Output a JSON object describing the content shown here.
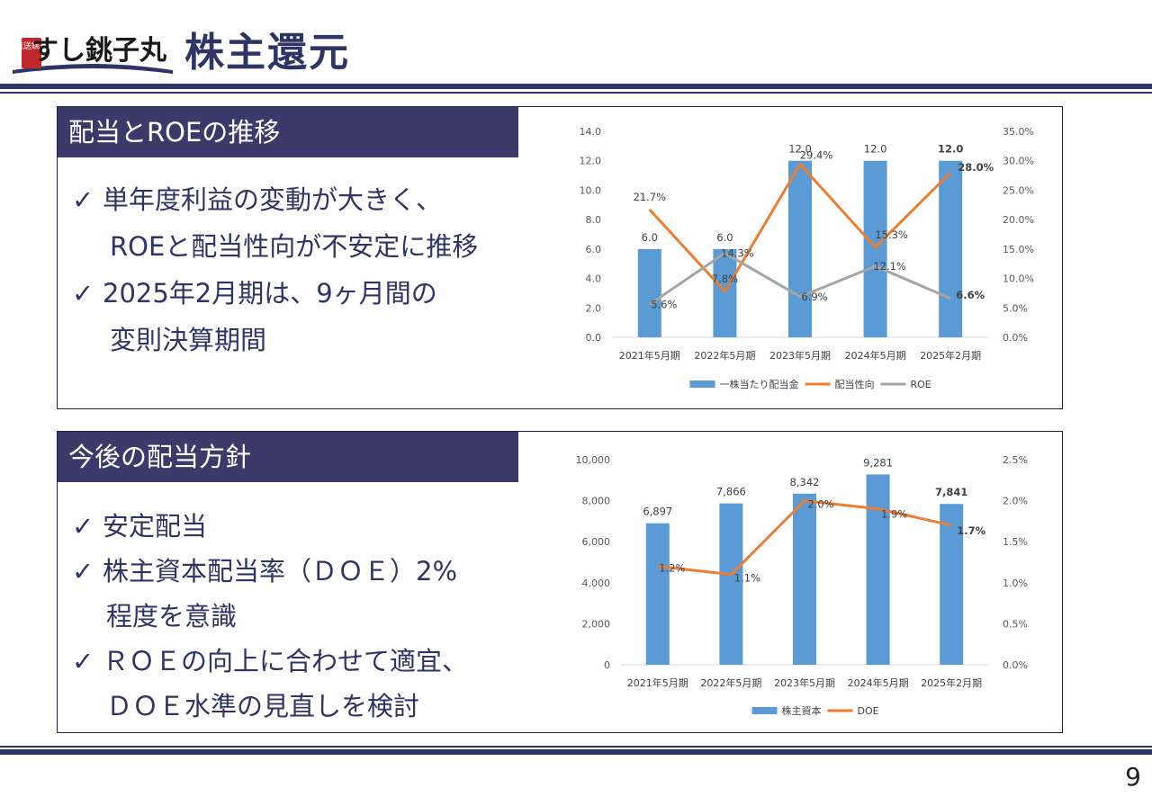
{
  "header": {
    "logo_text": "すし銚子丸",
    "logo_badge": "直送銚子",
    "title": "株主還元"
  },
  "section1": {
    "heading": "配当とROEの推移",
    "bullets": [
      {
        "check": "✓",
        "lines": [
          "単年度利益の変動が大きく、",
          "ROEと配当性向が不安定に推移"
        ]
      },
      {
        "check": "✓",
        "lines": [
          "2025年2月期は、9ヶ月間の",
          "変則決算期間"
        ]
      }
    ]
  },
  "section2": {
    "heading": "今後の配当方針",
    "bullets": [
      {
        "check": "✓",
        "lines": [
          "安定配当"
        ]
      },
      {
        "check": "✓",
        "lines": [
          "株主資本配当率（ＤＯＥ）2%",
          "程度を意識"
        ]
      },
      {
        "check": "✓",
        "lines": [
          "ＲＯＥの向上に合わせて適宜、",
          "ＤＯＥ水準の見直しを検討"
        ]
      }
    ]
  },
  "chart_data": [
    {
      "type": "bar",
      "categories": [
        "2021年5月期",
        "2022年5月期",
        "2023年5月期",
        "2024年5月期",
        "2025年2月期"
      ],
      "bar_series": {
        "name": "一株当たり配当金",
        "values": [
          6.0,
          6.0,
          12.0,
          12.0,
          12.0
        ],
        "labels": [
          "6.0",
          "6.0",
          "12.0",
          "12.0",
          "12.0"
        ],
        "color": "#5b9bd5"
      },
      "line_series": [
        {
          "name": "配当性向",
          "values": [
            21.7,
            7.8,
            29.4,
            15.3,
            28.0
          ],
          "labels": [
            "21.7%",
            "7.8%",
            "29.4%",
            "15.3%",
            "28.0%"
          ],
          "color": "#ed7d31"
        },
        {
          "name": "ROE",
          "values": [
            5.6,
            14.3,
            6.9,
            12.1,
            6.6
          ],
          "labels": [
            "5.6%",
            "14.3%",
            "6.9%",
            "12.1%",
            "6.6%"
          ],
          "color": "#a5a5a5"
        }
      ],
      "ylim": [
        0,
        14
      ],
      "y_ticks": [
        "0.0",
        "2.0",
        "4.0",
        "6.0",
        "8.0",
        "10.0",
        "12.0",
        "14.0"
      ],
      "y2lim": [
        0,
        35
      ],
      "y2_ticks": [
        "0.0%",
        "5.0%",
        "10.0%",
        "15.0%",
        "20.0%",
        "25.0%",
        "30.0%",
        "35.0%"
      ],
      "bold_last_labels": true,
      "legend": "bottom",
      "grid": false
    },
    {
      "type": "bar",
      "categories": [
        "2021年5月期",
        "2022年5月期",
        "2023年5月期",
        "2024年5月期",
        "2025年2月期"
      ],
      "bar_series": {
        "name": "株主資本",
        "values": [
          6897,
          7866,
          8342,
          9281,
          7841
        ],
        "labels": [
          "6,897",
          "7,866",
          "8,342",
          "9,281",
          "7,841"
        ],
        "color": "#5b9bd5"
      },
      "line_series": [
        {
          "name": "DOE",
          "values": [
            1.2,
            1.1,
            2.0,
            1.9,
            1.7
          ],
          "labels": [
            "1.2%",
            "1.1%",
            "2.0%",
            "1.9%",
            "1.7%"
          ],
          "color": "#ed7d31"
        }
      ],
      "ylim": [
        0,
        10000
      ],
      "y_ticks": [
        "0",
        "2,000",
        "4,000",
        "6,000",
        "8,000",
        "10,000"
      ],
      "y2lim": [
        0,
        2.5
      ],
      "y2_ticks": [
        "0.0%",
        "0.5%",
        "1.0%",
        "1.5%",
        "2.0%",
        "2.5%"
      ],
      "bold_last_labels": true,
      "legend": "bottom",
      "grid": false
    }
  ],
  "footer": {
    "page_number": "9"
  }
}
